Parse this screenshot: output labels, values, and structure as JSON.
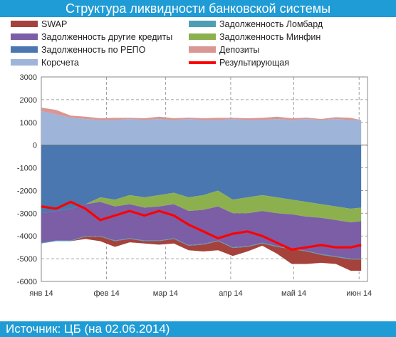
{
  "header": {
    "title": "Структура ликвидности банковской системы"
  },
  "footer": {
    "source": "Источник: ЦБ (на 02.06.2014)"
  },
  "legend": [
    {
      "label": "SWAP",
      "color": "#a5423c",
      "kind": "area"
    },
    {
      "label": "Задолженность Ломбард",
      "color": "#4f9fb4",
      "kind": "area"
    },
    {
      "label": "Задолженность другие кредиты",
      "color": "#7b5ea6",
      "kind": "area"
    },
    {
      "label": "Задолженность Минфин",
      "color": "#8db04f",
      "kind": "area"
    },
    {
      "label": "Задолженность по РЕПО",
      "color": "#4a77b0",
      "kind": "area"
    },
    {
      "label": "Депозиты",
      "color": "#d99794",
      "kind": "area"
    },
    {
      "label": "Корсчета",
      "color": "#9fb4d9",
      "kind": "area"
    },
    {
      "label": "Результирующая",
      "color": "#ff0000",
      "kind": "line"
    }
  ],
  "chart_data": {
    "type": "area",
    "title": "Структура ликвидности банковской системы",
    "ylim": [
      -6000,
      3000
    ],
    "yticks": [
      "3000",
      "2000",
      "1000",
      "0",
      "-1000",
      "-2000",
      "-3000",
      "-4000",
      "-5000",
      "-6000"
    ],
    "xticks": [
      {
        "label": "янв 14",
        "x": 0
      },
      {
        "label": "фев 14",
        "x": 31
      },
      {
        "label": "мар 14",
        "x": 59
      },
      {
        "label": "апр 14",
        "x": 90
      },
      {
        "label": "май 14",
        "x": 120
      },
      {
        "label": "июн 14",
        "x": 151
      }
    ],
    "grid": true,
    "x": [
      0,
      7,
      14,
      21,
      28,
      35,
      42,
      49,
      56,
      63,
      70,
      77,
      84,
      91,
      98,
      105,
      112,
      119,
      126,
      133,
      140,
      147,
      152
    ],
    "series": [
      {
        "name": "Корсчета",
        "values": [
          1500,
          1350,
          1200,
          1150,
          1100,
          1100,
          1150,
          1100,
          1150,
          1100,
          1150,
          1100,
          1100,
          1150,
          1100,
          1100,
          1150,
          1100,
          1150,
          1100,
          1150,
          1100,
          1100
        ]
      },
      {
        "name": "Депозиты",
        "values": [
          150,
          200,
          100,
          100,
          80,
          100,
          50,
          80,
          100,
          80,
          60,
          80,
          100,
          50,
          80,
          100,
          100,
          80,
          60,
          50,
          80,
          100,
          0
        ]
      },
      {
        "name": "Задолженность по РЕПО",
        "values": [
          -3000,
          -2900,
          -2800,
          -2600,
          -2300,
          -2400,
          -2200,
          -2300,
          -2200,
          -2100,
          -2300,
          -2200,
          -2000,
          -2400,
          -2300,
          -2200,
          -2300,
          -2400,
          -2500,
          -2600,
          -2700,
          -2800,
          -2750
        ]
      },
      {
        "name": "Задолженность Минфин",
        "values": [
          0,
          0,
          0,
          0,
          -200,
          -300,
          -400,
          -450,
          -500,
          -500,
          -600,
          -650,
          -700,
          -600,
          -700,
          -700,
          -700,
          -650,
          -650,
          -600,
          -600,
          -600,
          -600
        ]
      },
      {
        "name": "Задолженность другие кредиты",
        "values": [
          -1300,
          -1300,
          -1400,
          -1400,
          -1500,
          -1500,
          -1500,
          -1450,
          -1500,
          -1500,
          -1500,
          -1500,
          -1500,
          -1500,
          -1450,
          -1400,
          -1450,
          -1500,
          -1500,
          -1600,
          -1600,
          -1600,
          -1650
        ]
      },
      {
        "name": "Задолженность Ломбард",
        "values": [
          -30,
          -30,
          -30,
          -30,
          -30,
          -30,
          -30,
          -30,
          -30,
          -30,
          -30,
          -30,
          -30,
          -30,
          -30,
          -30,
          -30,
          -30,
          -30,
          -30,
          -30,
          -30,
          -30
        ]
      },
      {
        "name": "SWAP",
        "values": [
          0,
          0,
          0,
          -100,
          -200,
          -250,
          -150,
          -100,
          -150,
          -200,
          -200,
          -300,
          -400,
          -350,
          -200,
          -100,
          -300,
          -650,
          -550,
          -350,
          -300,
          -500,
          -500
        ]
      },
      {
        "name": "Результирующая",
        "values": [
          -2700,
          -2800,
          -2500,
          -2800,
          -3300,
          -3100,
          -2900,
          -3100,
          -2900,
          -3100,
          -3500,
          -3800,
          -4100,
          -3900,
          -3800,
          -4000,
          -4300,
          -4600,
          -4500,
          -4400,
          -4500,
          -4500,
          -4400
        ]
      }
    ]
  }
}
